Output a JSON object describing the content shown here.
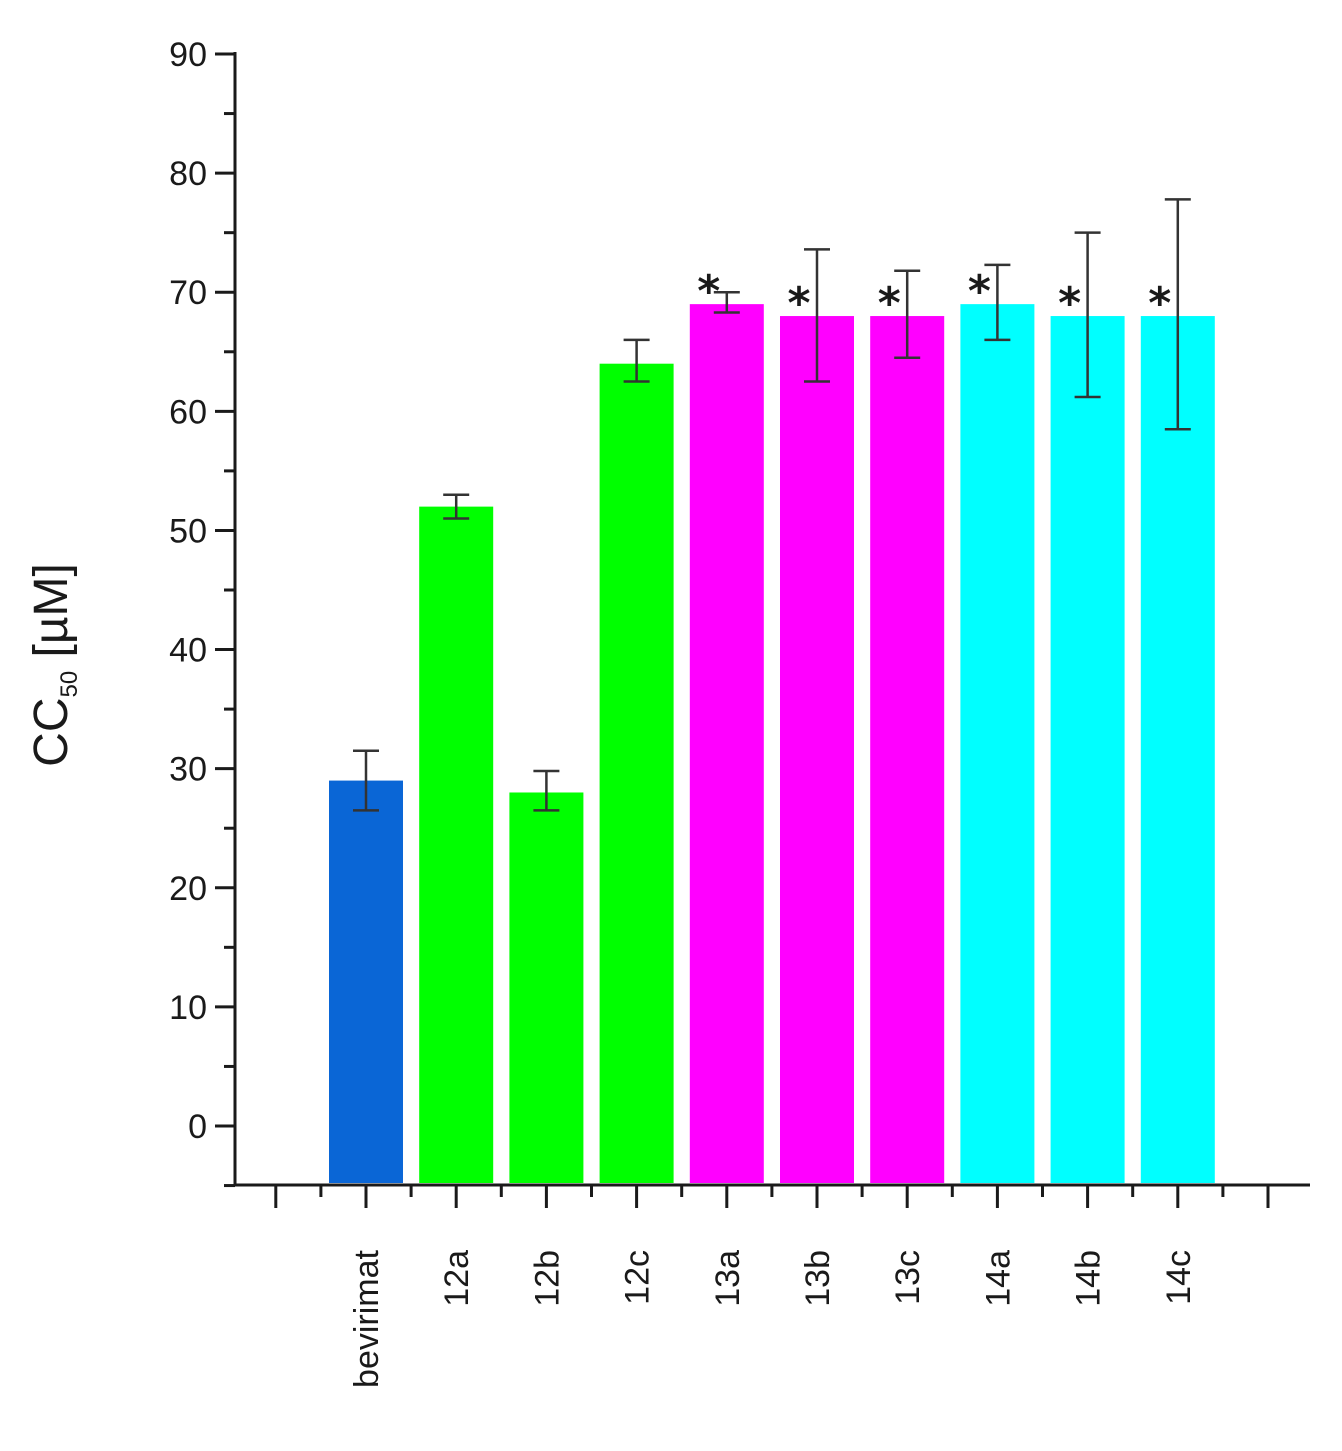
{
  "chart_data": {
    "type": "bar",
    "ylabel_main": "CC",
    "ylabel_sub": "50",
    "ylabel_unit": " [µM]",
    "ylim": [
      -5,
      90
    ],
    "yticks": [
      0,
      10,
      20,
      30,
      40,
      50,
      60,
      70,
      80,
      90
    ],
    "categories": [
      "bevirimat",
      "12a",
      "12b",
      "12c",
      "13a",
      "13b",
      "13c",
      "14a",
      "14b",
      "14c"
    ],
    "values": [
      29,
      52,
      28,
      64,
      69,
      68,
      68,
      69,
      68,
      68
    ],
    "error_low": [
      26.5,
      51,
      26.5,
      62.5,
      68.3,
      62.5,
      64.5,
      66,
      61.2,
      58.5
    ],
    "error_high": [
      31.5,
      53,
      29.8,
      66,
      70,
      73.6,
      71.8,
      72.3,
      75,
      77.8
    ],
    "significance": [
      "",
      "",
      "",
      "",
      "*",
      "*",
      "*",
      "*",
      "*",
      "*"
    ],
    "colors": [
      "#0a66d6",
      "#00ff00",
      "#00ff00",
      "#00ff00",
      "#ff00ff",
      "#ff00ff",
      "#ff00ff",
      "#00ffff",
      "#00ffff",
      "#00ffff"
    ]
  }
}
